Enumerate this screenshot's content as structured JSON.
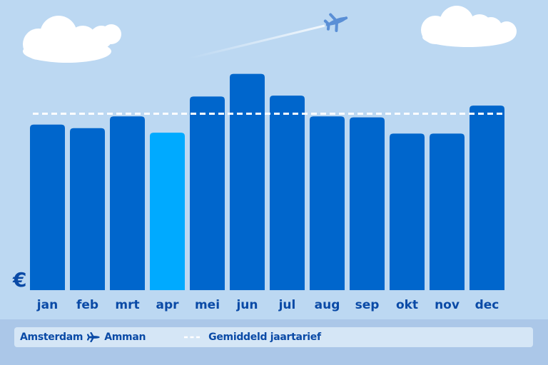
{
  "chart_data": {
    "type": "bar",
    "categories": [
      "jan",
      "feb",
      "mrt",
      "apr",
      "mei",
      "jun",
      "jul",
      "aug",
      "sep",
      "okt",
      "nov",
      "dec"
    ],
    "values": [
      183,
      179,
      192,
      174,
      214,
      239,
      215,
      192,
      191,
      173,
      173,
      204
    ],
    "highlight_index": 3,
    "average": 195,
    "ylim": [
      0,
      260
    ],
    "y_axis_symbol": "€",
    "grid": false,
    "legend_position": "bottom",
    "colors": {
      "bar": "#0066cc",
      "bar_highlight": "#00aaff",
      "average_line": "#ffffff",
      "label": "#0a4aa6"
    }
  },
  "legend": {
    "origin": "Amsterdam",
    "destination": "Amman",
    "average_label": "Gemiddeld jaartarief"
  },
  "icons": {
    "sky_plane": "airplane-icon",
    "legend_plane": "airplane-icon",
    "avg_marker": "dashed-line-icon"
  }
}
